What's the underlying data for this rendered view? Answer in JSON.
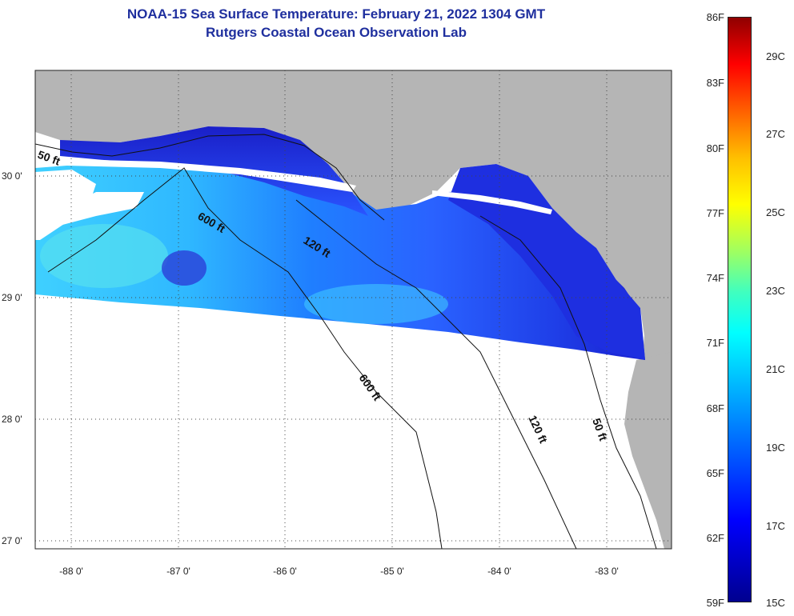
{
  "title": {
    "line1": "NOAA-15 Sea Surface Temperature:  February 21, 2022 1304 GMT",
    "line2": "Rutgers Coastal Ocean Observation Lab"
  },
  "map": {
    "lat_labels": [
      "30 0'",
      "29 0'",
      "28 0'",
      "27 0'"
    ],
    "lon_labels": [
      "-88 0'",
      "-87 0'",
      "-86 0'",
      "-85 0'",
      "-84 0'",
      "-83 0'"
    ],
    "contour_labels": [
      "50 ft",
      "600 ft",
      "120 ft",
      "600 ft",
      "120 ft",
      "50 ft"
    ],
    "colors": {
      "land": "#b5b5b5",
      "no_data": "#ffffff",
      "water_deep_blue": "#1a1fd8",
      "water_mid_blue": "#1f6fff",
      "water_cyan": "#3fd0ff"
    }
  },
  "colorbar": {
    "fahrenheit_labels": [
      "86F",
      "83F",
      "80F",
      "77F",
      "74F",
      "71F",
      "68F",
      "65F",
      "62F",
      "59F"
    ],
    "celsius_labels": [
      "29C",
      "27C",
      "25C",
      "23C",
      "21C",
      "19C",
      "17C",
      "15C"
    ]
  }
}
